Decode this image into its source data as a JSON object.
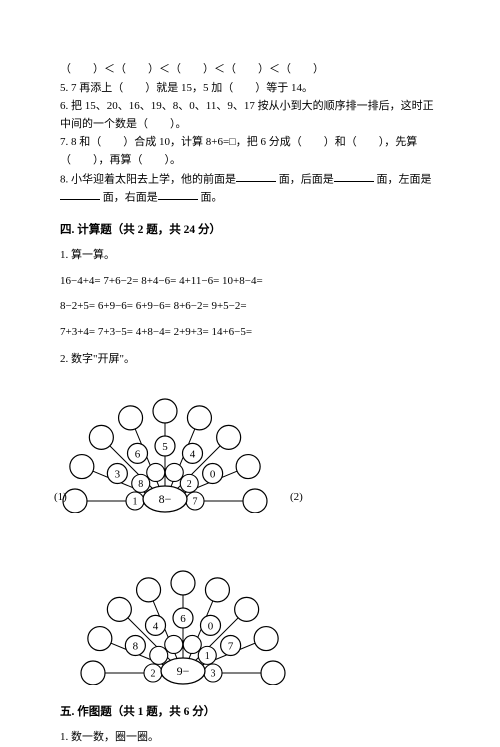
{
  "q_top_chain": "（　　）＜（　　）＜（　　）＜（　　）＜（　　）",
  "q5": "5. 7 再添上（　　）就是 15，5 加（　　）等于 14。",
  "q6": "6. 把 15、20、16、19、8、0、11、9、17 按从小到大的顺序排一排后，这时正中间的一个数是（　　）。",
  "q7": "7. 8 和（　　）合成 10，计算 8+6=□，把 6 分成（　　）和（　　），先算（　　），再算（　　）。",
  "q8_a": "8. 小华迎着太阳去上学，他的前面是",
  "q8_b": "面，后面是",
  "q8_c": "面，左面是",
  "q8_d": "面，右面是",
  "q8_e": "面。",
  "sec4": "四. 计算题（共 2 题，共 24 分）",
  "q4_1": "1. 算一算。",
  "row1": "16−4+4=  7+6−2=  8+4−6=  4+11−6=  10+8−4=",
  "row2": "8−2+5=  6+9−6=  6+9−6=  8+6−2=  9+5−2=",
  "row3": "7+3+4=  7+3−5=  4+8−4=  2+9+3=  14+6−5=",
  "q4_2": "2. 数字\"开屏\"。",
  "idx1": "(1)",
  "idx2": "(2)",
  "fan1": {
    "center": "8−",
    "mid": [
      "3",
      "6",
      "5",
      "4",
      "0"
    ],
    "inner": [
      "1",
      "8",
      "",
      "",
      "2",
      "7"
    ]
  },
  "fan2": {
    "center": "9−",
    "mid": [
      "8",
      "4",
      "6",
      "0",
      "7"
    ],
    "inner": [
      "2",
      "",
      "",
      "",
      "1",
      "3"
    ]
  },
  "sec5": "五. 作图题（共 1 题，共 6 分）",
  "q5_1": "1. 数一数，圈一圈。"
}
